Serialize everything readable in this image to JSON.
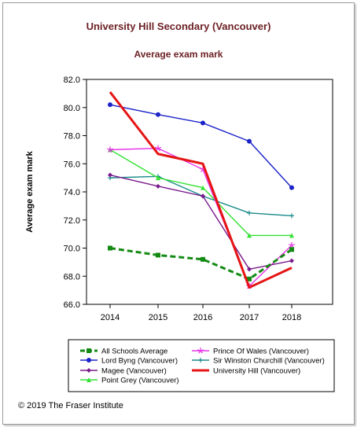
{
  "chart_data": {
    "type": "line",
    "title": "University Hill Secondary (Vancouver)",
    "subtitle": "Average exam mark",
    "xlabel": "",
    "ylabel": "Average exam mark",
    "x": [
      "2014",
      "2015",
      "2016",
      "2017",
      "2018"
    ],
    "ylim": [
      66.0,
      82.0
    ],
    "yticks": [
      "66.0",
      "68.0",
      "70.0",
      "72.0",
      "74.0",
      "76.0",
      "78.0",
      "80.0",
      "82.0"
    ],
    "grid": false,
    "legend_position": "bottom",
    "series": [
      {
        "name": "All Schools Average",
        "color": "#138a13",
        "marker": "square",
        "style": "dashed",
        "values": [
          70.0,
          69.5,
          69.2,
          67.8,
          69.9
        ]
      },
      {
        "name": "Lord Byng (Vancouver)",
        "color": "#1a22c8",
        "marker": "circle",
        "style": "solid",
        "values": [
          80.2,
          79.5,
          78.9,
          77.6,
          74.3
        ]
      },
      {
        "name": "Magee (Vancouver)",
        "color": "#7a1a8c",
        "marker": "diamond",
        "style": "solid",
        "values": [
          75.2,
          74.4,
          73.7,
          68.5,
          69.1
        ]
      },
      {
        "name": "Point Grey (Vancouver)",
        "color": "#33e233",
        "marker": "triangle",
        "style": "solid",
        "values": [
          77.0,
          75.0,
          74.3,
          70.9,
          70.9
        ]
      },
      {
        "name": "Prince Of Wales (Vancouver)",
        "color": "#e633e6",
        "marker": "star",
        "style": "solid",
        "values": [
          77.0,
          77.1,
          75.6,
          67.3,
          70.2
        ]
      },
      {
        "name": "Sir Winston Churchill (Vancouver)",
        "color": "#1a8a8a",
        "marker": "plus",
        "style": "solid",
        "values": [
          75.0,
          75.1,
          73.7,
          72.5,
          72.3
        ]
      },
      {
        "name": "University Hill (Vancouver)",
        "color": "#e61414",
        "marker": "none",
        "style": "solid-thick",
        "values": [
          81.1,
          76.7,
          76.0,
          67.2,
          68.6
        ]
      }
    ]
  },
  "footer": "© 2019 The Fraser Institute"
}
